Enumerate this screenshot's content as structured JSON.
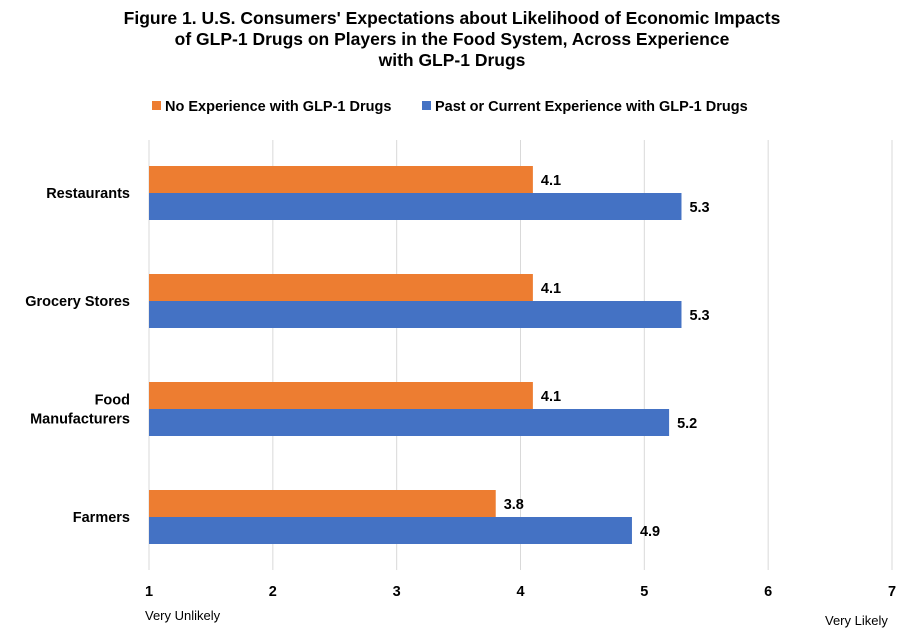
{
  "chart_data": {
    "type": "bar",
    "orientation": "horizontal",
    "title_lines": [
      "Figure 1. U.S. Consumers' Expectations about Likelihood of Economic Impacts",
      "of GLP-1 Drugs on Players in the Food System, Across Experience",
      "with GLP-1 Drugs"
    ],
    "categories": [
      {
        "label_lines": [
          "Restaurants"
        ]
      },
      {
        "label_lines": [
          "Grocery Stores"
        ]
      },
      {
        "label_lines": [
          "Food",
          "Manufacturers"
        ]
      },
      {
        "label_lines": [
          "Farmers"
        ]
      }
    ],
    "series": [
      {
        "name": "No Experience with GLP-1 Drugs",
        "color": "#ED7D31",
        "values": [
          4.1,
          4.1,
          4.1,
          3.8
        ],
        "labels": [
          "4.1",
          "4.1",
          "4.1",
          "3.8"
        ]
      },
      {
        "name": "Past or Current Experience with GLP-1 Drugs",
        "color": "#4472C4",
        "values": [
          5.3,
          5.3,
          5.2,
          4.9
        ],
        "labels": [
          "5.3",
          "5.3",
          "5.2",
          "4.9"
        ]
      }
    ],
    "xlim": [
      1,
      7
    ],
    "xticks": [
      "1",
      "2",
      "3",
      "4",
      "5",
      "6",
      "7"
    ],
    "x_low_label": "Very Unlikely",
    "x_high_label": "Very Likely",
    "grid": true,
    "legend_position": "top"
  }
}
